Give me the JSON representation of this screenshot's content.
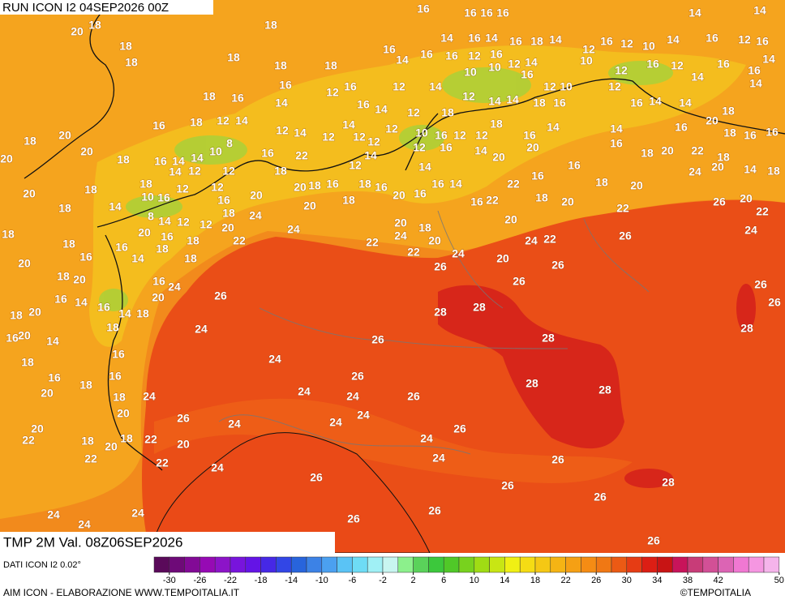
{
  "header": {
    "run": "RUN ICON I2 04SEP2026 00Z"
  },
  "map": {
    "labels": [
      16,
      16,
      16,
      16,
      14,
      14,
      20,
      18,
      18,
      14,
      16,
      14,
      16,
      18,
      14,
      16,
      12,
      10,
      14,
      16,
      12,
      16,
      18,
      18,
      18,
      18,
      18,
      16,
      14,
      16,
      16,
      12,
      10,
      12,
      16,
      14,
      10,
      12,
      12,
      16,
      12,
      14,
      16,
      16,
      14,
      16,
      12,
      16,
      12,
      14,
      10,
      16,
      12,
      10,
      12,
      14,
      14,
      18,
      16,
      12,
      16,
      14,
      14,
      18,
      14,
      18,
      16,
      14,
      16,
      14,
      12,
      18,
      12,
      14,
      18,
      16,
      12,
      14,
      14,
      12,
      12,
      12,
      10,
      16,
      12,
      12,
      18,
      16,
      14,
      14,
      16,
      20,
      18,
      16,
      16,
      18,
      20,
      8,
      10,
      14,
      14,
      16,
      18,
      20,
      20,
      16,
      22,
      12,
      12,
      16,
      14,
      20,
      20,
      16,
      16,
      18,
      20,
      22,
      18,
      24,
      20,
      14,
      18,
      18,
      14,
      12,
      12,
      18,
      12,
      14,
      14,
      16,
      18,
      20,
      20,
      18,
      10,
      16,
      12,
      12,
      16,
      20,
      20,
      18,
      16,
      18,
      16,
      20,
      16,
      16,
      14,
      16,
      22,
      22,
      18,
      20,
      22,
      26,
      20,
      22,
      18,
      14,
      8,
      14,
      12,
      18,
      24,
      12,
      20,
      18,
      20,
      18,
      20,
      18,
      20,
      16,
      18,
      20,
      22,
      24,
      24,
      22,
      20,
      22,
      24,
      20,
      24,
      22,
      26,
      24,
      18,
      16,
      18,
      16,
      14,
      18,
      20,
      18,
      20,
      16,
      24,
      26,
      26,
      26,
      26,
      16,
      14,
      16,
      20,
      26,
      14,
      18,
      18,
      20,
      20,
      16,
      14,
      18,
      24,
      28,
      28,
      26,
      28,
      26,
      28,
      16,
      18,
      16,
      24,
      26,
      16,
      18,
      20,
      18,
      24,
      24,
      24,
      26,
      28,
      28,
      20,
      26,
      24,
      24,
      24,
      26,
      20,
      22,
      18,
      18,
      22,
      20,
      20,
      24,
      22,
      22,
      24,
      24,
      26,
      26,
      26,
      28,
      26,
      24,
      24,
      26,
      26,
      24,
      26
    ]
  },
  "footer": {
    "title": "TMP 2M Val. 08Z06SEP2026",
    "source": "DATI ICON I2 0.02°",
    "credit": "AIM ICON - ELABORAZIONE WWW.TEMPOITALIA.IT",
    "copyright": "©TEMPOITALIA"
  },
  "legend": {
    "ticks": [
      -30,
      -26,
      -22,
      -18,
      -14,
      -10,
      -6,
      -2,
      2,
      6,
      10,
      14,
      18,
      22,
      26,
      30,
      34,
      38,
      42,
      50
    ]
  }
}
